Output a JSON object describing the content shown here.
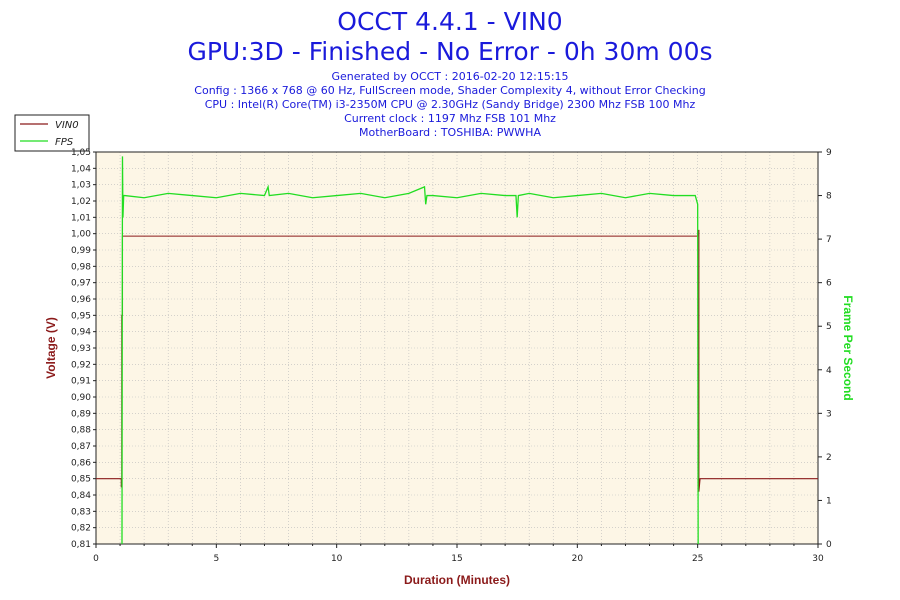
{
  "header": {
    "title_line1": "OCCT 4.4.1 - VIN0",
    "title_line2": "GPU:3D - Finished - No Error - 0h 30m 00s",
    "info_lines": [
      "Generated by OCCT : 2016-02-20 12:15:15",
      "Config : 1366 x 768 @ 60 Hz, FullScreen mode, Shader Complexity 4, without Error Checking",
      "CPU : Intel(R) Core(TM) i3-2350M CPU @ 2.30GHz (Sandy Bridge) 2300 Mhz FSB 100 Mhz",
      "Current clock : 1197 Mhz FSB 101 Mhz",
      "MotherBoard : TOSHIBA: PWWHA"
    ]
  },
  "legend": {
    "items": [
      {
        "label": "VIN0",
        "color": "#8b1a1a"
      },
      {
        "label": "FPS",
        "color": "#22dd22"
      }
    ]
  },
  "colors": {
    "plot_background": "#fdf6e6",
    "grid": "#bbbbbb",
    "voltage": "#8b1a1a",
    "fps": "#22dd22",
    "axis_title_left": "#8b1a1a",
    "axis_title_right": "#22dd22",
    "axis_title_bottom": "#8b1a1a"
  },
  "chart_data": {
    "type": "line",
    "xlabel": "Duration (Minutes)",
    "ylabel": "Voltage (V)",
    "y2label": "Frame Per Second",
    "xlim": [
      0,
      30
    ],
    "ylim": [
      0.81,
      1.05
    ],
    "y2lim": [
      0,
      9
    ],
    "grid": true,
    "legend_position": "top-left",
    "x_ticks": [
      "0",
      "5",
      "10",
      "15",
      "20",
      "25",
      "30"
    ],
    "y_ticks": [
      "0,81",
      "0,82",
      "0,83",
      "0,84",
      "0,85",
      "0,86",
      "0,87",
      "0,88",
      "0,89",
      "0,90",
      "0,91",
      "0,92",
      "0,93",
      "0,94",
      "0,95",
      "0,96",
      "0,97",
      "0,98",
      "0,99",
      "1,00",
      "1,01",
      "1,02",
      "1,03",
      "1,04",
      "1,05"
    ],
    "y2_ticks": [
      "0",
      "1",
      "2",
      "3",
      "4",
      "5",
      "6",
      "7",
      "8",
      "9"
    ],
    "series": [
      {
        "name": "VIN0",
        "axis": "left",
        "x": [
          0,
          1.05,
          1.05,
          1.07,
          1.07,
          1.1,
          1.1,
          25.0,
          25.0,
          25.05,
          25.05,
          25.1,
          30
        ],
        "y": [
          0.85,
          0.85,
          0.845,
          0.845,
          0.95,
          0.95,
          0.9985,
          0.9985,
          1.002,
          1.002,
          0.842,
          0.85,
          0.85
        ]
      },
      {
        "name": "FPS",
        "axis": "right",
        "x": [
          1.08,
          1.1,
          1.12,
          1.15,
          1.2,
          2,
          3,
          4,
          5,
          6,
          7,
          7.15,
          7.2,
          8,
          9,
          10,
          11,
          12,
          13,
          13.65,
          13.7,
          13.75,
          14,
          15,
          16,
          17,
          17.45,
          17.5,
          17.55,
          18,
          19,
          20,
          21,
          22,
          23,
          24,
          24.9,
          25.0,
          25.02
        ],
        "y": [
          0,
          8.9,
          7.5,
          8.0,
          8.0,
          7.95,
          8.05,
          8.0,
          7.95,
          8.05,
          8.0,
          8.2,
          8.0,
          8.05,
          7.95,
          8.0,
          8.05,
          7.95,
          8.05,
          8.2,
          7.8,
          8.0,
          8.0,
          7.95,
          8.05,
          8.0,
          8.0,
          7.5,
          8.0,
          8.05,
          7.95,
          8.0,
          8.05,
          7.95,
          8.05,
          8.0,
          8.0,
          7.8,
          0
        ]
      }
    ]
  }
}
